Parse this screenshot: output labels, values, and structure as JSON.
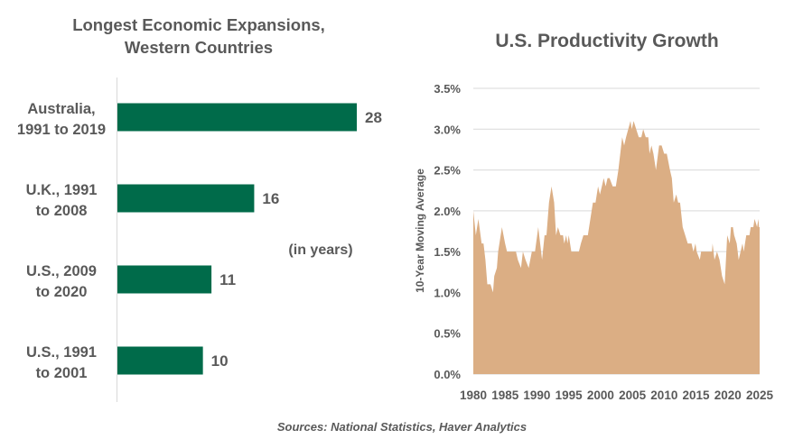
{
  "source": "Sources: National Statistics, Haver Analytics",
  "chart_data": [
    {
      "type": "bar",
      "orientation": "horizontal",
      "title_lines": [
        "Longest Economic Expansions,",
        "Western Countries"
      ],
      "annotation": "(in years)",
      "categories": [
        "Australia,\n1991 to 2019",
        "U.K., 1991\nto 2008",
        "U.S., 2009\nto 2020",
        "U.S., 1991\nto 2001"
      ],
      "values": [
        28,
        16,
        11,
        10
      ],
      "data_labels": [
        "28",
        "16",
        "11",
        "10"
      ],
      "xlim": [
        0,
        30
      ],
      "grid": false,
      "color": "#006b4a"
    },
    {
      "type": "area",
      "title": "U.S. Productivity Growth",
      "ylabel": "10-Year Moving Average",
      "xlabel": "",
      "xlim": [
        1980,
        2025
      ],
      "ylim": [
        0,
        3.5
      ],
      "x_ticks": [
        "1980",
        "1985",
        "1990",
        "1995",
        "2000",
        "2005",
        "2010",
        "2015",
        "2020",
        "2025"
      ],
      "y_ticks": [
        "0.0%",
        "0.5%",
        "1.0%",
        "1.5%",
        "2.0%",
        "2.5%",
        "3.0%",
        "3.5%"
      ],
      "grid": true,
      "color": "#dbae84",
      "points": [
        [
          1980.0,
          2.0
        ],
        [
          1980.4,
          1.7
        ],
        [
          1980.8,
          1.9
        ],
        [
          1981.3,
          1.6
        ],
        [
          1981.6,
          1.6
        ],
        [
          1981.9,
          1.4
        ],
        [
          1982.2,
          1.1
        ],
        [
          1982.7,
          1.1
        ],
        [
          1983.1,
          1.0
        ],
        [
          1983.3,
          1.2
        ],
        [
          1983.7,
          1.3
        ],
        [
          1983.9,
          1.5
        ],
        [
          1984.5,
          1.8
        ],
        [
          1985.0,
          1.6
        ],
        [
          1985.3,
          1.5
        ],
        [
          1986.7,
          1.5
        ],
        [
          1987.0,
          1.4
        ],
        [
          1987.5,
          1.3
        ],
        [
          1987.8,
          1.5
        ],
        [
          1988.2,
          1.4
        ],
        [
          1988.7,
          1.3
        ],
        [
          1989.2,
          1.5
        ],
        [
          1989.7,
          1.5
        ],
        [
          1990.2,
          1.8
        ],
        [
          1990.8,
          1.4
        ],
        [
          1991.2,
          1.7
        ],
        [
          1991.5,
          1.7
        ],
        [
          1991.9,
          2.1
        ],
        [
          1992.3,
          2.3
        ],
        [
          1992.7,
          2.1
        ],
        [
          1993.0,
          1.7
        ],
        [
          1993.3,
          1.8
        ],
        [
          1993.7,
          1.7
        ],
        [
          1994.1,
          1.7
        ],
        [
          1994.3,
          1.6
        ],
        [
          1994.6,
          1.7
        ],
        [
          1994.8,
          1.6
        ],
        [
          1995.0,
          1.7
        ],
        [
          1995.4,
          1.5
        ],
        [
          1996.6,
          1.5
        ],
        [
          1996.9,
          1.6
        ],
        [
          1997.3,
          1.7
        ],
        [
          1998.0,
          1.7
        ],
        [
          1998.4,
          1.9
        ],
        [
          1998.8,
          2.1
        ],
        [
          1999.2,
          2.1
        ],
        [
          1999.6,
          2.3
        ],
        [
          1999.9,
          2.2
        ],
        [
          2000.2,
          2.3
        ],
        [
          2000.5,
          2.4
        ],
        [
          2000.8,
          2.3
        ],
        [
          2001.1,
          2.4
        ],
        [
          2001.4,
          2.4
        ],
        [
          2001.9,
          2.3
        ],
        [
          2002.4,
          2.3
        ],
        [
          2002.8,
          2.5
        ],
        [
          2003.4,
          2.9
        ],
        [
          2003.7,
          2.8
        ],
        [
          2004.0,
          2.9
        ],
        [
          2004.7,
          3.1
        ],
        [
          2004.9,
          3.0
        ],
        [
          2005.2,
          3.1
        ],
        [
          2005.6,
          3.0
        ],
        [
          2006.0,
          2.9
        ],
        [
          2006.4,
          2.9
        ],
        [
          2006.7,
          3.0
        ],
        [
          2007.1,
          2.9
        ],
        [
          2007.5,
          2.9
        ],
        [
          2007.7,
          2.7
        ],
        [
          2008.0,
          2.8
        ],
        [
          2008.3,
          2.7
        ],
        [
          2008.7,
          2.5
        ],
        [
          2009.2,
          2.8
        ],
        [
          2009.6,
          2.8
        ],
        [
          2010.0,
          2.7
        ],
        [
          2010.4,
          2.7
        ],
        [
          2010.9,
          2.5
        ],
        [
          2011.2,
          2.4
        ],
        [
          2011.5,
          2.1
        ],
        [
          2011.9,
          2.2
        ],
        [
          2012.2,
          2.1
        ],
        [
          2012.5,
          2.1
        ],
        [
          2012.9,
          1.8
        ],
        [
          2013.3,
          1.7
        ],
        [
          2013.7,
          1.6
        ],
        [
          2014.3,
          1.6
        ],
        [
          2014.6,
          1.5
        ],
        [
          2014.9,
          1.6
        ],
        [
          2015.1,
          1.5
        ],
        [
          2015.6,
          1.4
        ],
        [
          2015.8,
          1.5
        ],
        [
          2017.5,
          1.5
        ],
        [
          2017.6,
          1.6
        ],
        [
          2017.9,
          1.4
        ],
        [
          2018.3,
          1.5
        ],
        [
          2018.7,
          1.4
        ],
        [
          2019.1,
          1.2
        ],
        [
          2019.5,
          1.1
        ],
        [
          2019.9,
          1.7
        ],
        [
          2020.3,
          1.6
        ],
        [
          2020.5,
          1.8
        ],
        [
          2020.8,
          1.8
        ],
        [
          2021.0,
          1.7
        ],
        [
          2021.4,
          1.6
        ],
        [
          2021.7,
          1.4
        ],
        [
          2022.0,
          1.5
        ],
        [
          2022.3,
          1.6
        ],
        [
          2022.5,
          1.5
        ],
        [
          2022.9,
          1.7
        ],
        [
          2023.4,
          1.7
        ],
        [
          2023.6,
          1.8
        ],
        [
          2024.0,
          1.8
        ],
        [
          2024.2,
          1.9
        ],
        [
          2024.6,
          1.8
        ],
        [
          2024.8,
          1.9
        ],
        [
          2024.9,
          1.8
        ],
        [
          2025.0,
          1.8
        ]
      ]
    }
  ]
}
